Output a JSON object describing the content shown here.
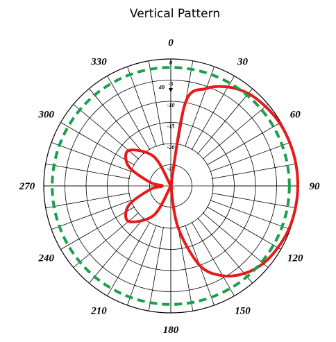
{
  "chart_data": {
    "type": "polar",
    "title": "Vertical Pattern",
    "unit_label": "dB",
    "radial_ticks": [
      "0",
      "-5",
      "-10",
      "-15",
      "-20",
      "-25"
    ],
    "radial_range_db": [
      -30,
      0
    ],
    "angle_ticks": [
      "0",
      "30",
      "60",
      "90",
      "120",
      "150",
      "180",
      "210",
      "240",
      "270",
      "300",
      "330"
    ],
    "angle_grid_step_deg": 10,
    "grid": true,
    "series": [
      {
        "style": "solid",
        "color": "#e8191b",
        "points": [
          [
            0,
            -30
          ],
          [
            10,
            -10
          ],
          [
            20,
            -5.5
          ],
          [
            30,
            -3
          ],
          [
            40,
            -1.5
          ],
          [
            50,
            -0.8
          ],
          [
            60,
            -0.3
          ],
          [
            70,
            -0.1
          ],
          [
            80,
            0
          ],
          [
            90,
            0
          ],
          [
            100,
            -0.1
          ],
          [
            110,
            -0.3
          ],
          [
            120,
            -0.8
          ],
          [
            130,
            -1.5
          ],
          [
            140,
            -3
          ],
          [
            150,
            -5.5
          ],
          [
            160,
            -10
          ],
          [
            170,
            -20
          ],
          [
            180,
            -30
          ],
          [
            200,
            -30
          ],
          [
            210,
            -22
          ],
          [
            230,
            -17
          ],
          [
            245,
            -19
          ],
          [
            260,
            -25
          ],
          [
            270,
            -28
          ],
          [
            280,
            -25
          ],
          [
            295,
            -19
          ],
          [
            310,
            -17
          ],
          [
            330,
            -22
          ],
          [
            340,
            -30
          ],
          [
            360,
            -30
          ]
        ]
      },
      {
        "style": "dashed",
        "color": "#1aa04a",
        "points": [
          [
            0,
            -2
          ],
          [
            90,
            -2
          ],
          [
            180,
            -2
          ],
          [
            270,
            -2
          ],
          [
            360,
            -2
          ]
        ]
      }
    ]
  }
}
